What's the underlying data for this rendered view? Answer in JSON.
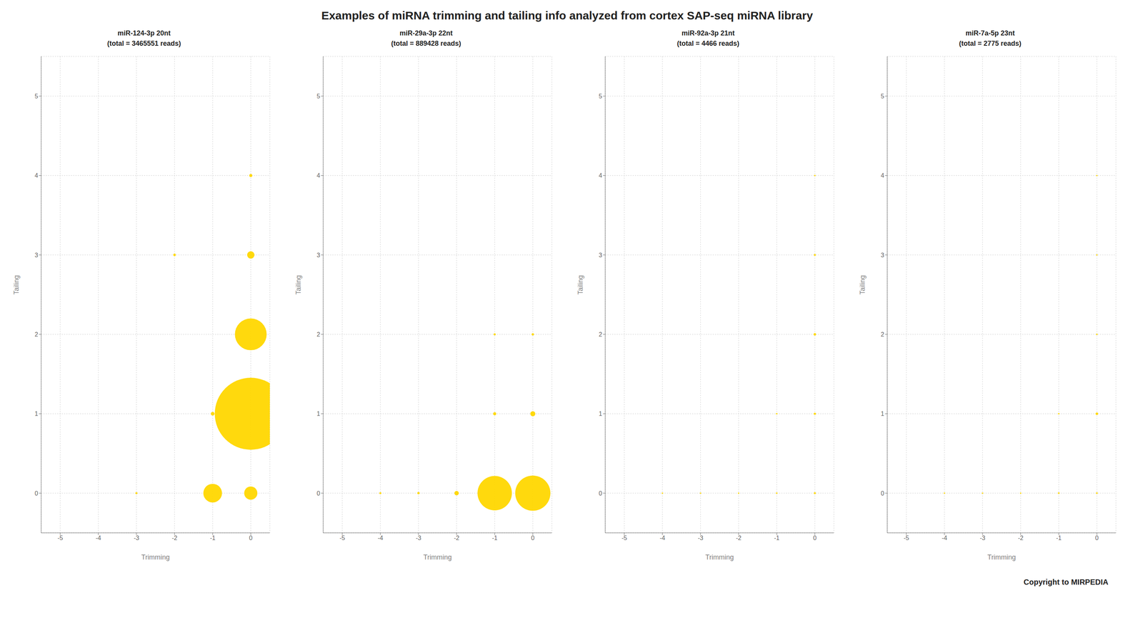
{
  "title": "Examples of miRNA trimming and tailing info analyzed from cortex SAP-seq miRNA library",
  "annotations": [
    "Copyright to MIRPEDIA"
  ],
  "chart_data": [
    {
      "type": "scatter",
      "title": "miR-124-3p 20nt",
      "subtitle": "(total = 3465551 reads)",
      "x": [
        0,
        0,
        0,
        0,
        0,
        -1,
        -1,
        -2,
        -3
      ],
      "values": [
        0,
        1,
        2,
        3,
        4,
        0,
        1,
        3,
        0
      ],
      "sizes": [
        60000,
        1800000,
        350000,
        18000,
        2500,
        120000,
        4000,
        1500,
        800
      ],
      "color": "#FFD700",
      "xlim": [
        -5.5,
        0.5
      ],
      "ylim": [
        -0.5,
        5.5
      ],
      "xticks": [
        -5,
        -4,
        -3,
        -2,
        -1,
        0
      ],
      "yticks": [
        0,
        1,
        2,
        3,
        4,
        5
      ],
      "xlabel": "Trimming",
      "ylabel": "Tailing",
      "grid": true
    },
    {
      "type": "scatter",
      "title": "miR-29a-3p 22nt",
      "subtitle": "(total = 889428 reads)",
      "x": [
        0,
        -1,
        -2,
        0,
        -1,
        -3,
        -4,
        0,
        -1
      ],
      "values": [
        0,
        0,
        0,
        1,
        1,
        0,
        0,
        2,
        2
      ],
      "sizes": [
        430000,
        410000,
        6000,
        8000,
        2500,
        1200,
        800,
        1200,
        800
      ],
      "color": "#FFD700",
      "xlim": [
        -5.5,
        0.5
      ],
      "ylim": [
        -0.5,
        5.5
      ],
      "xticks": [
        -5,
        -4,
        -3,
        -2,
        -1,
        0
      ],
      "yticks": [
        0,
        1,
        2,
        3,
        4,
        5
      ],
      "xlabel": "Trimming",
      "ylabel": "Tailing",
      "grid": true
    },
    {
      "type": "scatter",
      "title": "miR-92a-3p 21nt",
      "subtitle": "(total = 4466 reads)",
      "x": [
        0,
        0,
        0,
        0,
        0,
        -1,
        -1,
        -2,
        -3,
        -4
      ],
      "values": [
        0,
        1,
        2,
        3,
        4,
        0,
        1,
        0,
        0,
        0
      ],
      "sizes": [
        700,
        1000,
        1400,
        700,
        150,
        250,
        150,
        90,
        70,
        50
      ],
      "color": "#FFD700",
      "xlim": [
        -5.5,
        0.5
      ],
      "ylim": [
        -0.5,
        5.5
      ],
      "xticks": [
        -5,
        -4,
        -3,
        -2,
        -1,
        0
      ],
      "yticks": [
        0,
        1,
        2,
        3,
        4,
        5
      ],
      "xlabel": "Trimming",
      "ylabel": "Tailing",
      "grid": true
    },
    {
      "type": "scatter",
      "title": "miR-7a-5p 23nt",
      "subtitle": "(total = 2775 reads)",
      "x": [
        0,
        0,
        0,
        0,
        0,
        -1,
        -1,
        -2,
        -3,
        -4
      ],
      "values": [
        0,
        1,
        2,
        3,
        4,
        0,
        1,
        0,
        0,
        0
      ],
      "sizes": [
        350,
        1500,
        180,
        60,
        40,
        350,
        90,
        70,
        45,
        30
      ],
      "color": "#FFD700",
      "xlim": [
        -5.5,
        0.5
      ],
      "ylim": [
        -0.5,
        5.5
      ],
      "xticks": [
        -5,
        -4,
        -3,
        -2,
        -1,
        0
      ],
      "yticks": [
        0,
        1,
        2,
        3,
        4,
        5
      ],
      "xlabel": "Trimming",
      "ylabel": "Tailing",
      "grid": true
    }
  ]
}
